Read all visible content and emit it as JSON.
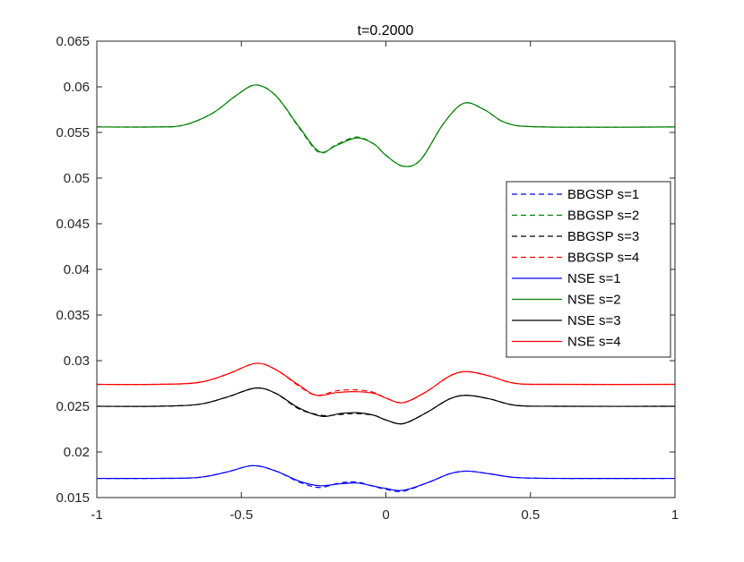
{
  "chart_data": {
    "type": "line",
    "title": "t=0.2000",
    "xlabel": "",
    "ylabel": "",
    "xlim": [
      -1,
      1
    ],
    "ylim": [
      0.015,
      0.065
    ],
    "x_ticks": [
      "-1",
      "-0.5",
      "0",
      "0.5",
      "1"
    ],
    "y_ticks": [
      "0.015",
      "0.02",
      "0.025",
      "0.03",
      "0.035",
      "0.04",
      "0.045",
      "0.05",
      "0.055",
      "0.06",
      "0.065"
    ],
    "grid": false,
    "legend_position": "right",
    "series": [
      {
        "name": "BBGSP s=1",
        "color": "#0000ff",
        "dash": true,
        "points": [
          [
            -1,
            0.0171
          ],
          [
            -0.8,
            0.0171
          ],
          [
            -0.65,
            0.0172
          ],
          [
            -0.55,
            0.0178
          ],
          [
            -0.46,
            0.0185
          ],
          [
            -0.38,
            0.0179
          ],
          [
            -0.3,
            0.0167
          ],
          [
            -0.23,
            0.0161
          ],
          [
            -0.16,
            0.0166
          ],
          [
            -0.1,
            0.0167
          ],
          [
            -0.05,
            0.0163
          ],
          [
            0,
            0.0159
          ],
          [
            0.06,
            0.0157
          ],
          [
            0.15,
            0.0167
          ],
          [
            0.22,
            0.0176
          ],
          [
            0.28,
            0.0179
          ],
          [
            0.36,
            0.0176
          ],
          [
            0.45,
            0.0172
          ],
          [
            0.6,
            0.0171
          ],
          [
            1,
            0.0171
          ]
        ]
      },
      {
        "name": "BBGSP s=2",
        "color": "#008000",
        "dash": true,
        "points": [
          [
            -1,
            0.0556
          ],
          [
            -0.8,
            0.0556
          ],
          [
            -0.7,
            0.0558
          ],
          [
            -0.6,
            0.0571
          ],
          [
            -0.52,
            0.059
          ],
          [
            -0.45,
            0.0602
          ],
          [
            -0.38,
            0.059
          ],
          [
            -0.3,
            0.0555
          ],
          [
            -0.23,
            0.0528
          ],
          [
            -0.17,
            0.0537
          ],
          [
            -0.1,
            0.0545
          ],
          [
            -0.04,
            0.0537
          ],
          [
            0,
            0.0525
          ],
          [
            0.06,
            0.0513
          ],
          [
            0.12,
            0.052
          ],
          [
            0.2,
            0.056
          ],
          [
            0.27,
            0.0582
          ],
          [
            0.34,
            0.0575
          ],
          [
            0.42,
            0.056
          ],
          [
            0.55,
            0.0556
          ],
          [
            1,
            0.0556
          ]
        ]
      },
      {
        "name": "BBGSP s=3",
        "color": "#000000",
        "dash": true,
        "points": [
          [
            -1,
            0.025
          ],
          [
            -0.8,
            0.025
          ],
          [
            -0.65,
            0.0252
          ],
          [
            -0.55,
            0.026
          ],
          [
            -0.45,
            0.027
          ],
          [
            -0.38,
            0.0264
          ],
          [
            -0.3,
            0.0247
          ],
          [
            -0.22,
            0.024
          ],
          [
            -0.16,
            0.0241
          ],
          [
            -0.1,
            0.0242
          ],
          [
            -0.04,
            0.024
          ],
          [
            0,
            0.0235
          ],
          [
            0.06,
            0.0231
          ],
          [
            0.14,
            0.0243
          ],
          [
            0.22,
            0.0258
          ],
          [
            0.28,
            0.0262
          ],
          [
            0.36,
            0.0258
          ],
          [
            0.45,
            0.0251
          ],
          [
            0.6,
            0.025
          ],
          [
            1,
            0.025
          ]
        ]
      },
      {
        "name": "BBGSP s=4",
        "color": "#ff0000",
        "dash": true,
        "points": [
          [
            -1,
            0.0274
          ],
          [
            -0.8,
            0.0274
          ],
          [
            -0.65,
            0.0276
          ],
          [
            -0.55,
            0.0285
          ],
          [
            -0.45,
            0.0297
          ],
          [
            -0.38,
            0.029
          ],
          [
            -0.3,
            0.0272
          ],
          [
            -0.24,
            0.0262
          ],
          [
            -0.17,
            0.0267
          ],
          [
            -0.1,
            0.0268
          ],
          [
            -0.04,
            0.0265
          ],
          [
            0,
            0.0259
          ],
          [
            0.06,
            0.0254
          ],
          [
            0.14,
            0.0266
          ],
          [
            0.22,
            0.0283
          ],
          [
            0.28,
            0.0288
          ],
          [
            0.36,
            0.0283
          ],
          [
            0.45,
            0.0275
          ],
          [
            0.6,
            0.0274
          ],
          [
            1,
            0.0274
          ]
        ]
      },
      {
        "name": "NSE s=1",
        "color": "#0000ff",
        "dash": false,
        "points": [
          [
            -1,
            0.0171
          ],
          [
            -0.8,
            0.0171
          ],
          [
            -0.65,
            0.0172
          ],
          [
            -0.55,
            0.0178
          ],
          [
            -0.46,
            0.0185
          ],
          [
            -0.38,
            0.0179
          ],
          [
            -0.3,
            0.0168
          ],
          [
            -0.23,
            0.0163
          ],
          [
            -0.16,
            0.0165
          ],
          [
            -0.1,
            0.0166
          ],
          [
            -0.05,
            0.0163
          ],
          [
            0,
            0.016
          ],
          [
            0.06,
            0.0158
          ],
          [
            0.15,
            0.0167
          ],
          [
            0.22,
            0.0176
          ],
          [
            0.28,
            0.0179
          ],
          [
            0.36,
            0.0176
          ],
          [
            0.45,
            0.0172
          ],
          [
            0.6,
            0.0171
          ],
          [
            1,
            0.0171
          ]
        ]
      },
      {
        "name": "NSE s=2",
        "color": "#008000",
        "dash": false,
        "points": [
          [
            -1,
            0.0556
          ],
          [
            -0.8,
            0.0556
          ],
          [
            -0.7,
            0.0558
          ],
          [
            -0.6,
            0.0571
          ],
          [
            -0.52,
            0.059
          ],
          [
            -0.45,
            0.0602
          ],
          [
            -0.38,
            0.059
          ],
          [
            -0.3,
            0.0556
          ],
          [
            -0.23,
            0.0529
          ],
          [
            -0.17,
            0.0536
          ],
          [
            -0.1,
            0.0544
          ],
          [
            -0.04,
            0.0537
          ],
          [
            0,
            0.0525
          ],
          [
            0.06,
            0.0513
          ],
          [
            0.12,
            0.052
          ],
          [
            0.2,
            0.056
          ],
          [
            0.27,
            0.0582
          ],
          [
            0.34,
            0.0575
          ],
          [
            0.42,
            0.056
          ],
          [
            0.55,
            0.0556
          ],
          [
            1,
            0.0556
          ]
        ]
      },
      {
        "name": "NSE s=3",
        "color": "#000000",
        "dash": false,
        "points": [
          [
            -1,
            0.025
          ],
          [
            -0.8,
            0.025
          ],
          [
            -0.65,
            0.0252
          ],
          [
            -0.55,
            0.026
          ],
          [
            -0.45,
            0.027
          ],
          [
            -0.38,
            0.0264
          ],
          [
            -0.3,
            0.0248
          ],
          [
            -0.22,
            0.0239
          ],
          [
            -0.16,
            0.0242
          ],
          [
            -0.1,
            0.0243
          ],
          [
            -0.04,
            0.024
          ],
          [
            0,
            0.0235
          ],
          [
            0.06,
            0.0231
          ],
          [
            0.14,
            0.0243
          ],
          [
            0.22,
            0.0258
          ],
          [
            0.28,
            0.0262
          ],
          [
            0.36,
            0.0258
          ],
          [
            0.45,
            0.0251
          ],
          [
            0.6,
            0.025
          ],
          [
            1,
            0.025
          ]
        ]
      },
      {
        "name": "NSE s=4",
        "color": "#ff0000",
        "dash": false,
        "points": [
          [
            -1,
            0.0274
          ],
          [
            -0.8,
            0.0274
          ],
          [
            -0.65,
            0.0276
          ],
          [
            -0.55,
            0.0285
          ],
          [
            -0.45,
            0.0297
          ],
          [
            -0.38,
            0.029
          ],
          [
            -0.3,
            0.0273
          ],
          [
            -0.24,
            0.0262
          ],
          [
            -0.17,
            0.0265
          ],
          [
            -0.1,
            0.0266
          ],
          [
            -0.04,
            0.0264
          ],
          [
            0,
            0.0259
          ],
          [
            0.06,
            0.0254
          ],
          [
            0.14,
            0.0266
          ],
          [
            0.22,
            0.0283
          ],
          [
            0.28,
            0.0288
          ],
          [
            0.36,
            0.0283
          ],
          [
            0.45,
            0.0275
          ],
          [
            0.6,
            0.0274
          ],
          [
            1,
            0.0274
          ]
        ]
      }
    ]
  }
}
